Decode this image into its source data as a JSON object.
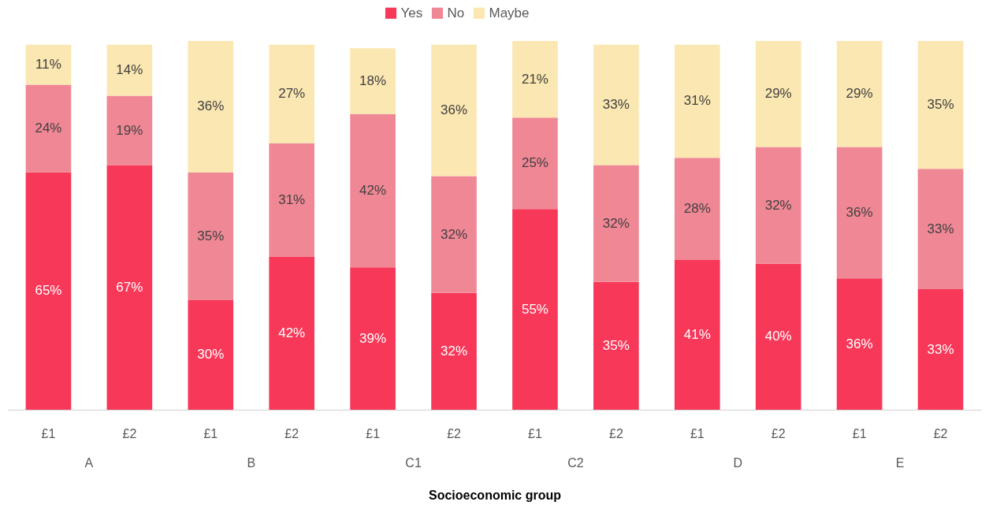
{
  "chart_data": {
    "type": "bar",
    "stacked": true,
    "xlabel": "Socioeconomic group",
    "legend": "top",
    "categories": [
      "£1",
      "£2",
      "£1",
      "£2",
      "£1",
      "£2",
      "£1",
      "£2",
      "£1",
      "£2",
      "£1",
      "£2"
    ],
    "annotations": [
      "A",
      "B",
      "C1",
      "C2",
      "D",
      "E"
    ],
    "series": [
      {
        "name": "Yes",
        "color": "#f73859",
        "values": [
          65,
          67,
          30,
          42,
          39,
          32,
          55,
          35,
          41,
          40,
          36,
          33
        ],
        "value_labels": [
          "65%",
          "67%",
          "30%",
          "42%",
          "39%",
          "32%",
          "55%",
          "35%",
          "41%",
          "40%",
          "36%",
          "33%"
        ]
      },
      {
        "name": "No",
        "color": "#f08795",
        "values": [
          24,
          19,
          35,
          31,
          42,
          32,
          25,
          32,
          28,
          32,
          36,
          33
        ],
        "value_labels": [
          "24%",
          "19%",
          "35%",
          "31%",
          "42%",
          "32%",
          "25%",
          "32%",
          "28%",
          "32%",
          "36%",
          "33%"
        ]
      },
      {
        "name": "Maybe",
        "color": "#fbe7b1",
        "values": [
          11,
          14,
          36,
          27,
          18,
          36,
          21,
          33,
          31,
          29,
          29,
          35
        ],
        "value_labels": [
          "11%",
          "14%",
          "36%",
          "27%",
          "18%",
          "36%",
          "21%",
          "33%",
          "31%",
          "29%",
          "29%",
          "35%"
        ]
      }
    ]
  }
}
